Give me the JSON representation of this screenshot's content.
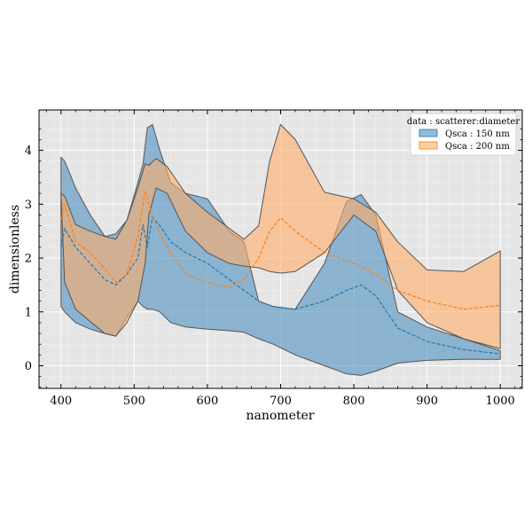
{
  "chart_data": {
    "type": "area",
    "xlabel": "nanometer",
    "ylabel": "dimensionless",
    "xlim": [
      370,
      1030
    ],
    "ylim": [
      -0.42,
      4.75
    ],
    "x_ticks": [
      400,
      500,
      600,
      700,
      800,
      900,
      1000
    ],
    "y_ticks": [
      0,
      1,
      2,
      3,
      4
    ],
    "grid": true,
    "background": "#e5e5e5",
    "legend": {
      "title": "data : scatterer:diameter",
      "placement": "top-right"
    },
    "series": [
      {
        "name": "Qsca : 150 nm",
        "color": "#1f77b4",
        "fill": "#4f8fc0",
        "x": [
          400,
          405,
          420,
          440,
          460,
          475,
          490,
          505,
          512,
          518,
          525,
          535,
          550,
          570,
          600,
          630,
          650,
          670,
          690,
          720,
          760,
          790,
          810,
          830,
          860,
          900,
          950,
          1000
        ],
        "mean": [
          2.2,
          2.55,
          2.2,
          1.9,
          1.6,
          1.5,
          1.7,
          2.0,
          2.62,
          2.2,
          2.76,
          2.6,
          2.3,
          2.1,
          1.9,
          1.6,
          1.4,
          1.2,
          1.1,
          1.05,
          1.2,
          1.4,
          1.5,
          1.3,
          0.7,
          0.45,
          0.3,
          0.22
        ],
        "upper": [
          3.87,
          3.8,
          3.3,
          2.8,
          2.4,
          2.45,
          2.7,
          3.4,
          3.75,
          4.42,
          4.48,
          4.0,
          3.4,
          3.2,
          3.1,
          2.5,
          2.3,
          1.2,
          1.1,
          1.05,
          1.9,
          3.05,
          3.18,
          2.8,
          1.0,
          0.72,
          0.5,
          0.28
        ],
        "lower": [
          1.1,
          1.0,
          0.8,
          0.68,
          0.6,
          0.55,
          0.9,
          1.2,
          1.1,
          1.05,
          1.05,
          1.0,
          0.8,
          0.72,
          0.68,
          0.65,
          0.62,
          0.5,
          0.4,
          0.2,
          0.0,
          -0.15,
          -0.18,
          -0.1,
          0.05,
          0.1,
          0.12,
          0.12
        ]
      },
      {
        "name": "Qsca : 200 nm",
        "color": "#ff7f0e",
        "fill": "#ffad69",
        "x": [
          400,
          405,
          420,
          440,
          460,
          475,
          490,
          505,
          515,
          520,
          530,
          545,
          570,
          600,
          630,
          650,
          670,
          685,
          700,
          720,
          760,
          800,
          830,
          860,
          900,
          950,
          1000
        ],
        "mean": [
          2.7,
          3.0,
          2.3,
          2.1,
          1.8,
          1.55,
          1.7,
          2.4,
          3.25,
          3.0,
          2.6,
          2.2,
          1.7,
          1.55,
          1.45,
          1.6,
          2.0,
          2.5,
          2.75,
          2.5,
          2.1,
          1.9,
          1.7,
          1.4,
          1.2,
          1.05,
          1.12
        ],
        "upper": [
          3.2,
          3.15,
          2.62,
          2.5,
          2.4,
          2.35,
          2.7,
          3.3,
          3.75,
          3.72,
          3.85,
          3.7,
          3.2,
          2.85,
          2.55,
          2.35,
          2.6,
          3.8,
          4.48,
          4.2,
          3.22,
          3.1,
          2.85,
          2.3,
          1.78,
          1.75,
          2.13
        ],
        "lower": [
          3.2,
          1.55,
          1.05,
          0.82,
          0.6,
          0.55,
          0.8,
          1.2,
          1.9,
          2.8,
          3.3,
          3.2,
          2.5,
          2.1,
          1.9,
          1.85,
          1.82,
          1.75,
          1.72,
          1.75,
          2.1,
          2.8,
          2.5,
          1.4,
          0.8,
          0.5,
          0.32
        ]
      }
    ]
  }
}
